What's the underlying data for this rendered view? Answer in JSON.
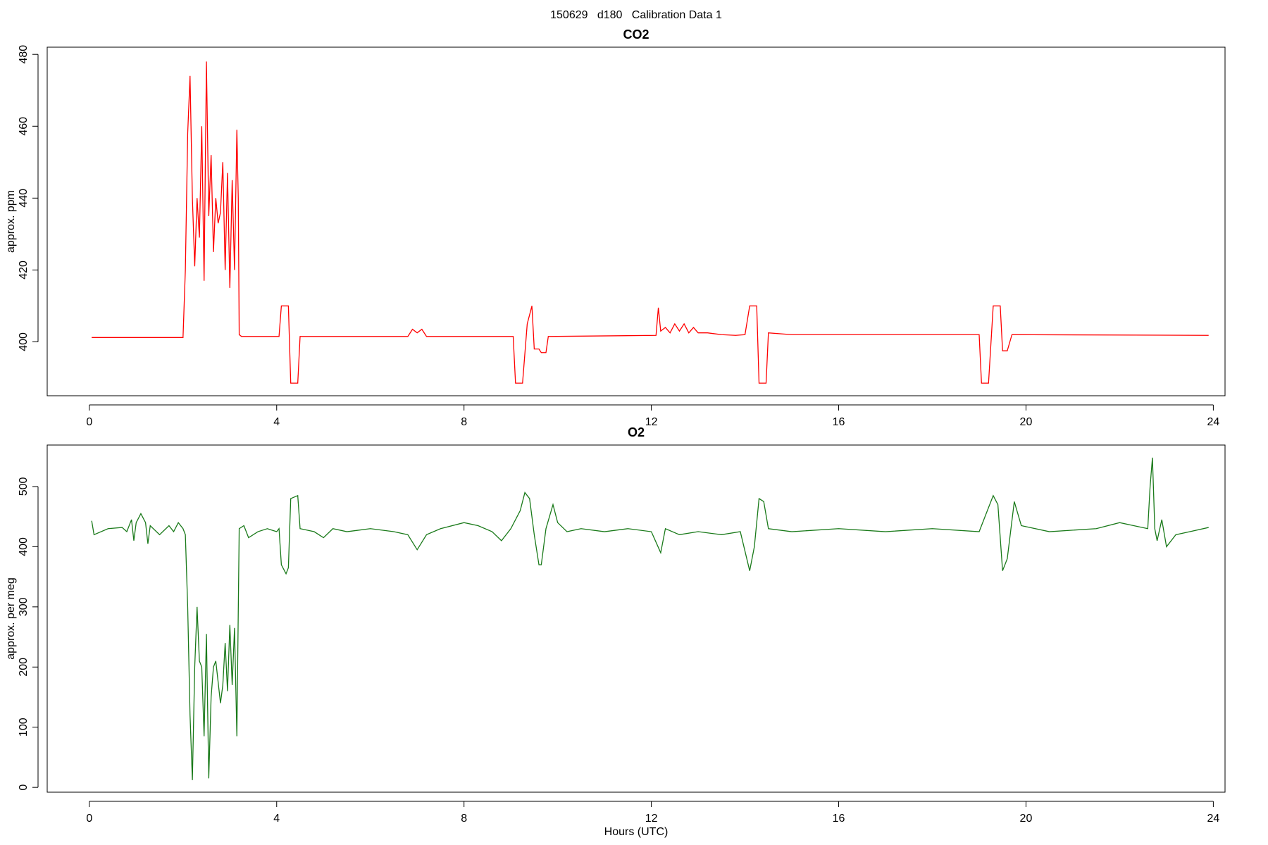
{
  "title": "150629   d180   Calibration Data 1",
  "chart_data": [
    {
      "type": "line",
      "title": "CO2",
      "y_label": "approx. ppm",
      "color": "#ff0000",
      "x": [
        0.05,
        2.0,
        2.05,
        2.1,
        2.15,
        2.2,
        2.25,
        2.3,
        2.35,
        2.4,
        2.45,
        2.5,
        2.55,
        2.6,
        2.65,
        2.7,
        2.75,
        2.8,
        2.85,
        2.9,
        2.95,
        3.0,
        3.05,
        3.1,
        3.15,
        3.18,
        3.2,
        3.25,
        4.05,
        4.1,
        4.25,
        4.3,
        4.45,
        4.5,
        6.8,
        6.9,
        7.0,
        7.1,
        7.2,
        9.05,
        9.1,
        9.25,
        9.35,
        9.45,
        9.5,
        9.6,
        9.65,
        9.75,
        9.8,
        12.1,
        12.15,
        12.2,
        12.3,
        12.4,
        12.5,
        12.6,
        12.7,
        12.8,
        12.9,
        13.0,
        13.2,
        13.5,
        13.8,
        14.0,
        14.1,
        14.25,
        14.3,
        14.45,
        14.5,
        15.0,
        19.0,
        19.05,
        19.2,
        19.3,
        19.45,
        19.5,
        19.6,
        19.7,
        23.9
      ],
      "values": [
        401.2,
        401.2,
        420,
        458,
        474,
        440,
        421,
        440,
        429,
        460,
        417,
        478,
        435,
        452,
        425,
        440,
        433,
        436,
        450,
        420,
        447,
        415,
        445,
        420,
        459,
        440,
        402,
        401.5,
        401.5,
        410,
        410,
        388.5,
        388.5,
        401.5,
        401.5,
        403.5,
        402.5,
        403.5,
        401.5,
        401.5,
        388.5,
        388.5,
        405,
        410,
        398,
        398,
        397,
        397,
        401.5,
        401.8,
        409.5,
        403,
        404,
        402.5,
        405,
        403,
        405,
        402.5,
        404,
        402.5,
        402.5,
        402,
        401.8,
        402,
        410,
        410,
        388.5,
        388.5,
        402.5,
        402,
        402,
        388.5,
        388.5,
        410,
        410,
        397.5,
        397.5,
        402,
        401.8
      ],
      "xlim": [
        -0.9,
        24.25
      ],
      "xticks": [
        0,
        4,
        8,
        12,
        16,
        20,
        24
      ],
      "ylim": [
        385,
        482
      ],
      "yticks": [
        400,
        420,
        440,
        460,
        480
      ]
    },
    {
      "type": "line",
      "title": "O2",
      "y_label": "approx. per meg",
      "x_label": "Hours (UTC)",
      "color": "#1a7a1a",
      "x": [
        0.05,
        0.1,
        0.4,
        0.7,
        0.8,
        0.9,
        0.95,
        1.0,
        1.1,
        1.2,
        1.25,
        1.3,
        1.5,
        1.7,
        1.8,
        1.9,
        2.0,
        2.05,
        2.1,
        2.15,
        2.2,
        2.25,
        2.3,
        2.35,
        2.4,
        2.45,
        2.5,
        2.55,
        2.6,
        2.65,
        2.7,
        2.8,
        2.85,
        2.9,
        2.95,
        3.0,
        3.05,
        3.1,
        3.15,
        3.2,
        3.3,
        3.4,
        3.6,
        3.8,
        4.0,
        4.05,
        4.1,
        4.2,
        4.25,
        4.3,
        4.45,
        4.5,
        4.8,
        5.0,
        5.2,
        5.5,
        6.0,
        6.5,
        6.8,
        7.0,
        7.2,
        7.5,
        8.0,
        8.3,
        8.6,
        8.8,
        9.0,
        9.2,
        9.3,
        9.4,
        9.5,
        9.6,
        9.65,
        9.75,
        9.9,
        10.0,
        10.2,
        10.5,
        11.0,
        11.5,
        12.0,
        12.2,
        12.3,
        12.6,
        13.0,
        13.5,
        13.9,
        14.1,
        14.2,
        14.3,
        14.4,
        14.5,
        15.0,
        16.0,
        17.0,
        18.0,
        19.0,
        19.3,
        19.4,
        19.5,
        19.6,
        19.75,
        19.9,
        20.5,
        21.5,
        22.0,
        22.3,
        22.6,
        22.65,
        22.7,
        22.75,
        22.8,
        22.9,
        23.0,
        23.2,
        23.5,
        23.9
      ],
      "values": [
        443,
        420,
        430,
        432,
        425,
        445,
        410,
        440,
        455,
        440,
        405,
        435,
        420,
        435,
        425,
        440,
        430,
        420,
        300,
        120,
        12,
        200,
        300,
        210,
        200,
        85,
        255,
        15,
        150,
        200,
        210,
        140,
        170,
        240,
        160,
        270,
        170,
        265,
        85,
        430,
        435,
        415,
        425,
        430,
        425,
        430,
        370,
        355,
        365,
        480,
        485,
        430,
        425,
        415,
        430,
        425,
        430,
        425,
        420,
        395,
        420,
        430,
        440,
        435,
        425,
        410,
        430,
        460,
        490,
        480,
        420,
        370,
        370,
        430,
        470,
        440,
        425,
        430,
        425,
        430,
        425,
        390,
        430,
        420,
        425,
        420,
        425,
        360,
        400,
        480,
        475,
        430,
        425,
        430,
        425,
        430,
        425,
        485,
        470,
        360,
        380,
        475,
        435,
        425,
        430,
        440,
        435,
        430,
        500,
        548,
        430,
        410,
        445,
        400,
        420,
        425,
        432
      ],
      "xlim": [
        -0.9,
        24.25
      ],
      "xticks": [
        0,
        4,
        8,
        12,
        16,
        20,
        24
      ],
      "ylim": [
        -8,
        569
      ],
      "yticks": [
        0,
        100,
        200,
        300,
        400,
        500
      ]
    }
  ]
}
